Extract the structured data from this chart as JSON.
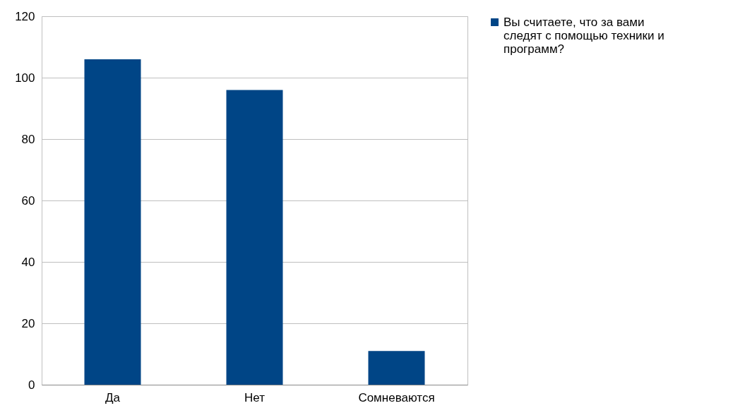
{
  "chart_data": {
    "type": "bar",
    "categories": [
      "Да",
      "Нет",
      "Сомневаются"
    ],
    "series": [
      {
        "name": "Вы считаете, что за вами следят с помощью техники и программ?",
        "color": "#004586",
        "values": [
          106,
          96,
          11
        ]
      }
    ],
    "ylim": [
      0,
      120
    ],
    "yticks": [
      0,
      20,
      40,
      60,
      80,
      100,
      120
    ],
    "grid": "y",
    "legend": "right"
  }
}
